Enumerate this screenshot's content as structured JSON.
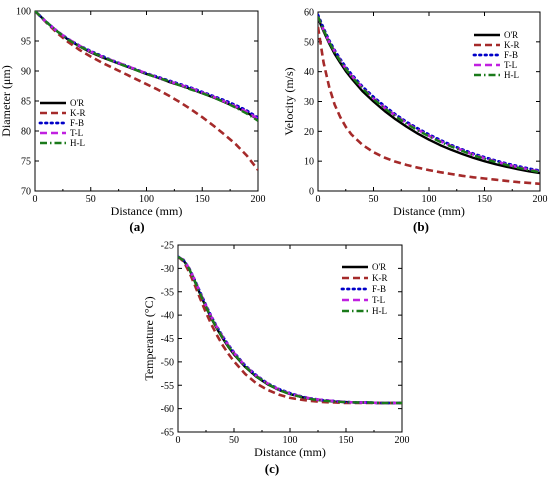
{
  "chart_data": [
    {
      "panel_label": "(a)",
      "type": "line",
      "xlabel": "Distance (mm)",
      "ylabel": "Diameter (μm)",
      "xlim": [
        0,
        200
      ],
      "ylim": [
        70,
        100
      ],
      "xticks": [
        0,
        50,
        100,
        150,
        200
      ],
      "yticks": [
        70,
        75,
        80,
        85,
        90,
        95,
        100
      ],
      "legend_position": "left",
      "x": [
        0,
        10,
        20,
        30,
        40,
        50,
        60,
        70,
        80,
        90,
        100,
        110,
        120,
        130,
        140,
        150,
        160,
        170,
        180,
        190,
        200
      ],
      "series": [
        {
          "name": "O'R",
          "values": [
            100,
            98.2,
            96.6,
            95.2,
            94.1,
            93.1,
            92.3,
            91.6,
            90.9,
            90.2,
            89.5,
            88.9,
            88.2,
            87.6,
            87,
            86.3,
            85.6,
            84.8,
            84,
            83.1,
            81.9
          ]
        },
        {
          "name": "K-R",
          "values": [
            100,
            98.1,
            96.3,
            94.8,
            93.5,
            92.4,
            91.4,
            90.5,
            89.6,
            88.7,
            87.8,
            86.9,
            85.9,
            84.8,
            83.6,
            82.3,
            80.9,
            79.4,
            77.8,
            75.9,
            73.5
          ]
        },
        {
          "name": "F-B",
          "values": [
            100,
            98.2,
            96.6,
            95.3,
            94.2,
            93.3,
            92.5,
            91.7,
            91,
            90.3,
            89.6,
            89,
            88.4,
            87.8,
            87.2,
            86.5,
            85.8,
            85.1,
            84.3,
            83.4,
            82.2
          ]
        },
        {
          "name": "T-L",
          "values": [
            100,
            98.2,
            96.6,
            95.3,
            94.2,
            93.2,
            92.4,
            91.7,
            91,
            90.3,
            89.6,
            88.9,
            88.3,
            87.7,
            87.1,
            86.4,
            85.7,
            84.9,
            84.1,
            83.2,
            82
          ]
        },
        {
          "name": "H-L",
          "values": [
            100,
            98.2,
            96.6,
            95.2,
            94.1,
            93.2,
            92.4,
            91.6,
            90.9,
            90.2,
            89.5,
            88.9,
            88.3,
            87.6,
            86.9,
            86.3,
            85.6,
            84.8,
            83.9,
            82.9,
            81.7
          ]
        }
      ]
    },
    {
      "panel_label": "(b)",
      "type": "line",
      "xlabel": "Distance (mm)",
      "ylabel": "Velocity (m/s)",
      "xlim": [
        0,
        200
      ],
      "ylim": [
        0,
        60
      ],
      "xticks": [
        0,
        50,
        100,
        150,
        200
      ],
      "yticks": [
        0,
        10,
        20,
        30,
        40,
        50,
        60
      ],
      "legend_position": "top-right",
      "x": [
        0,
        5,
        10,
        15,
        20,
        25,
        30,
        40,
        50,
        60,
        70,
        80,
        90,
        100,
        110,
        120,
        130,
        140,
        150,
        160,
        170,
        180,
        190,
        200
      ],
      "series": [
        {
          "name": "O'R",
          "values": [
            58,
            53.5,
            49.5,
            46,
            43,
            40.2,
            37.8,
            33.5,
            30,
            26.8,
            24,
            21.5,
            19.2,
            17.2,
            15.4,
            13.8,
            12.4,
            11.1,
            10,
            9,
            8.1,
            7.3,
            6.6,
            6
          ]
        },
        {
          "name": "K-R",
          "values": [
            55,
            43,
            35,
            29,
            24.8,
            21.5,
            19,
            15.5,
            13,
            11.2,
            9.8,
            8.7,
            7.8,
            7,
            6.3,
            5.7,
            5.1,
            4.6,
            4.2,
            3.8,
            3.4,
            3,
            2.7,
            2.4
          ]
        },
        {
          "name": "F-B",
          "values": [
            59,
            54.5,
            50.5,
            47.2,
            44.2,
            41.5,
            39.2,
            35,
            31.5,
            28.4,
            25.6,
            23.1,
            20.9,
            18.9,
            17.1,
            15.4,
            13.9,
            12.5,
            11.3,
            10.2,
            9.2,
            8.3,
            7.5,
            6.8
          ]
        },
        {
          "name": "T-L",
          "values": [
            58.5,
            54,
            50,
            46.8,
            43.8,
            41,
            38.7,
            34.6,
            31,
            27.9,
            25.2,
            22.7,
            20.5,
            18.5,
            16.7,
            15.1,
            13.6,
            12.2,
            11,
            9.9,
            8.9,
            8,
            7.2,
            6.5
          ]
        },
        {
          "name": "H-L",
          "values": [
            58.5,
            54,
            50,
            46.6,
            43.6,
            40.9,
            38.5,
            34.4,
            30.8,
            27.7,
            25,
            22.5,
            20.3,
            18.3,
            16.5,
            14.9,
            13.4,
            12,
            10.8,
            9.7,
            8.7,
            7.8,
            7,
            6.3
          ]
        }
      ]
    },
    {
      "panel_label": "(c)",
      "type": "line",
      "xlabel": "Distance (mm)",
      "ylabel": "Temperature (°C)",
      "xlim": [
        0,
        200
      ],
      "ylim": [
        -65,
        -25
      ],
      "xticks": [
        0,
        50,
        100,
        150,
        200
      ],
      "yticks": [
        -65,
        -60,
        -55,
        -50,
        -45,
        -40,
        -35,
        -30,
        -25
      ],
      "legend_position": "top-right",
      "x": [
        0,
        5,
        10,
        15,
        20,
        25,
        30,
        35,
        40,
        45,
        50,
        60,
        70,
        80,
        90,
        100,
        110,
        120,
        130,
        140,
        150,
        160,
        170,
        180,
        190,
        200
      ],
      "series": [
        {
          "name": "O'R",
          "values": [
            -27.5,
            -28.3,
            -30.2,
            -32.8,
            -35.6,
            -38.3,
            -40.8,
            -43,
            -45,
            -46.8,
            -48.4,
            -51.1,
            -53.2,
            -54.8,
            -56,
            -56.9,
            -57.5,
            -58,
            -58.3,
            -58.5,
            -58.6,
            -58.7,
            -58.7,
            -58.8,
            -58.8,
            -58.8
          ]
        },
        {
          "name": "K-R",
          "values": [
            -27.5,
            -28.5,
            -30.8,
            -33.6,
            -36.6,
            -39.5,
            -42.1,
            -44.4,
            -46.5,
            -48.3,
            -49.9,
            -52.6,
            -54.6,
            -56,
            -57,
            -57.7,
            -58.1,
            -58.4,
            -58.6,
            -58.7,
            -58.8,
            -58.8,
            -58.8,
            -58.8,
            -58.8,
            -58.8
          ]
        },
        {
          "name": "F-B",
          "values": [
            -27.5,
            -28.2,
            -30,
            -32.5,
            -35.2,
            -37.9,
            -40.4,
            -42.6,
            -44.6,
            -46.4,
            -48,
            -50.8,
            -52.9,
            -54.6,
            -55.8,
            -56.7,
            -57.4,
            -57.9,
            -58.2,
            -58.4,
            -58.6,
            -58.7,
            -58.7,
            -58.8,
            -58.8,
            -58.8
          ]
        },
        {
          "name": "T-L",
          "values": [
            -27.5,
            -28.2,
            -30,
            -32.5,
            -35.3,
            -38,
            -40.5,
            -42.7,
            -44.7,
            -46.5,
            -48.1,
            -50.9,
            -53,
            -54.6,
            -55.9,
            -56.8,
            -57.4,
            -57.9,
            -58.2,
            -58.4,
            -58.6,
            -58.7,
            -58.7,
            -58.8,
            -58.8,
            -58.8
          ]
        },
        {
          "name": "H-L",
          "values": [
            -27.5,
            -28.3,
            -30.1,
            -32.7,
            -35.5,
            -38.2,
            -40.7,
            -42.9,
            -44.9,
            -46.7,
            -48.3,
            -51,
            -53.1,
            -54.7,
            -56,
            -56.9,
            -57.5,
            -58,
            -58.3,
            -58.5,
            -58.6,
            -58.7,
            -58.7,
            -58.8,
            -58.8,
            -58.8
          ]
        }
      ]
    }
  ],
  "series_styles": {
    "O'R": {
      "color": "#000000",
      "dash": "solid",
      "legend_label": "O'R"
    },
    "K-R": {
      "color": "#a52a2a",
      "dash": "dashed",
      "legend_label": "K-R"
    },
    "F-B": {
      "color": "#0000c8",
      "dash": "dotted",
      "legend_label": "F-B"
    },
    "T-L": {
      "color": "#c020e0",
      "dash": "dashed",
      "legend_label": "T-L"
    },
    "H-L": {
      "color": "#1a7a1a",
      "dash": "dashdot",
      "legend_label": "H-L"
    }
  }
}
